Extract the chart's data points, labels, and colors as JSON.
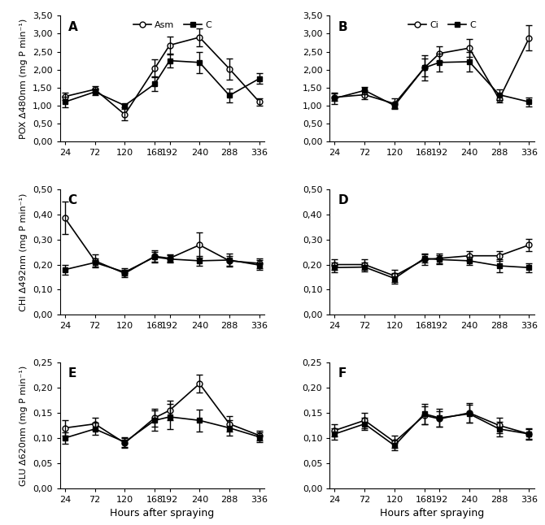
{
  "x": [
    24,
    72,
    120,
    168,
    192,
    240,
    288,
    336
  ],
  "pox_A_asm": [
    1.25,
    1.45,
    0.75,
    2.03,
    2.68,
    2.9,
    2.02,
    1.1
  ],
  "pox_A_asm_err": [
    0.1,
    0.1,
    0.15,
    0.25,
    0.25,
    0.25,
    0.3,
    0.1
  ],
  "pox_A_c": [
    1.1,
    1.38,
    1.0,
    1.6,
    2.25,
    2.2,
    1.28,
    1.75
  ],
  "pox_A_c_err": [
    0.15,
    0.1,
    0.05,
    0.2,
    0.2,
    0.3,
    0.2,
    0.15
  ],
  "pox_B_ci": [
    1.23,
    1.3,
    1.05,
    2.05,
    2.45,
    2.6,
    1.18,
    2.88
  ],
  "pox_B_ci_err": [
    0.1,
    0.12,
    0.15,
    0.35,
    0.2,
    0.25,
    0.1,
    0.35
  ],
  "pox_B_c": [
    1.2,
    1.42,
    1.0,
    2.05,
    2.2,
    2.22,
    1.3,
    1.1
  ],
  "pox_B_c_err": [
    0.15,
    0.1,
    0.08,
    0.25,
    0.25,
    0.28,
    0.15,
    0.12
  ],
  "chi_C_asm": [
    0.385,
    0.215,
    0.165,
    0.233,
    0.225,
    0.278,
    0.215,
    0.205
  ],
  "chi_C_asm_err": [
    0.065,
    0.025,
    0.015,
    0.025,
    0.015,
    0.05,
    0.02,
    0.02
  ],
  "chi_C_c": [
    0.18,
    0.208,
    0.17,
    0.23,
    0.222,
    0.215,
    0.218,
    0.198
  ],
  "chi_C_c_err": [
    0.02,
    0.015,
    0.015,
    0.02,
    0.015,
    0.02,
    0.025,
    0.02
  ],
  "chi_D_ci": [
    0.2,
    0.2,
    0.155,
    0.22,
    0.225,
    0.235,
    0.235,
    0.278
  ],
  "chi_D_ci_err": [
    0.02,
    0.02,
    0.025,
    0.02,
    0.02,
    0.02,
    0.02,
    0.025
  ],
  "chi_D_c": [
    0.188,
    0.19,
    0.145,
    0.225,
    0.22,
    0.215,
    0.195,
    0.188
  ],
  "chi_D_c_err": [
    0.02,
    0.018,
    0.02,
    0.018,
    0.018,
    0.015,
    0.025,
    0.018
  ],
  "glu_E_asm": [
    0.12,
    0.128,
    0.09,
    0.14,
    0.155,
    0.208,
    0.128,
    0.105
  ],
  "glu_E_asm_err": [
    0.015,
    0.012,
    0.01,
    0.018,
    0.02,
    0.018,
    0.015,
    0.01
  ],
  "glu_E_c": [
    0.1,
    0.118,
    0.092,
    0.135,
    0.142,
    0.135,
    0.12,
    0.102
  ],
  "glu_E_c_err": [
    0.012,
    0.012,
    0.01,
    0.02,
    0.025,
    0.022,
    0.015,
    0.01
  ],
  "glu_F_ci": [
    0.115,
    0.135,
    0.092,
    0.145,
    0.138,
    0.15,
    0.125,
    0.108
  ],
  "glu_F_ci_err": [
    0.012,
    0.015,
    0.012,
    0.018,
    0.015,
    0.02,
    0.015,
    0.012
  ],
  "glu_F_c": [
    0.108,
    0.128,
    0.085,
    0.148,
    0.14,
    0.148,
    0.118,
    0.108
  ],
  "glu_F_c_err": [
    0.012,
    0.012,
    0.01,
    0.02,
    0.018,
    0.018,
    0.015,
    0.01
  ],
  "color_line": "#000000",
  "pox_ylabel": "POX Δ480nm (mg P min⁻¹)",
  "chi_ylabel": "CHI Δ492nm (mg P min⁻¹)",
  "glu_ylabel": "GLU Δ620nm (mg P min⁻¹)",
  "xlabel": "Hours after spraying",
  "pox_ylim": [
    0,
    3.5
  ],
  "pox_yticks": [
    0.0,
    0.5,
    1.0,
    1.5,
    2.0,
    2.5,
    3.0,
    3.5
  ],
  "chi_ylim": [
    0,
    0.5
  ],
  "chi_yticks": [
    0.0,
    0.1,
    0.2,
    0.3,
    0.4,
    0.5
  ],
  "glu_ylim": [
    0,
    0.25
  ],
  "glu_yticks": [
    0.0,
    0.05,
    0.1,
    0.15,
    0.2,
    0.25
  ]
}
